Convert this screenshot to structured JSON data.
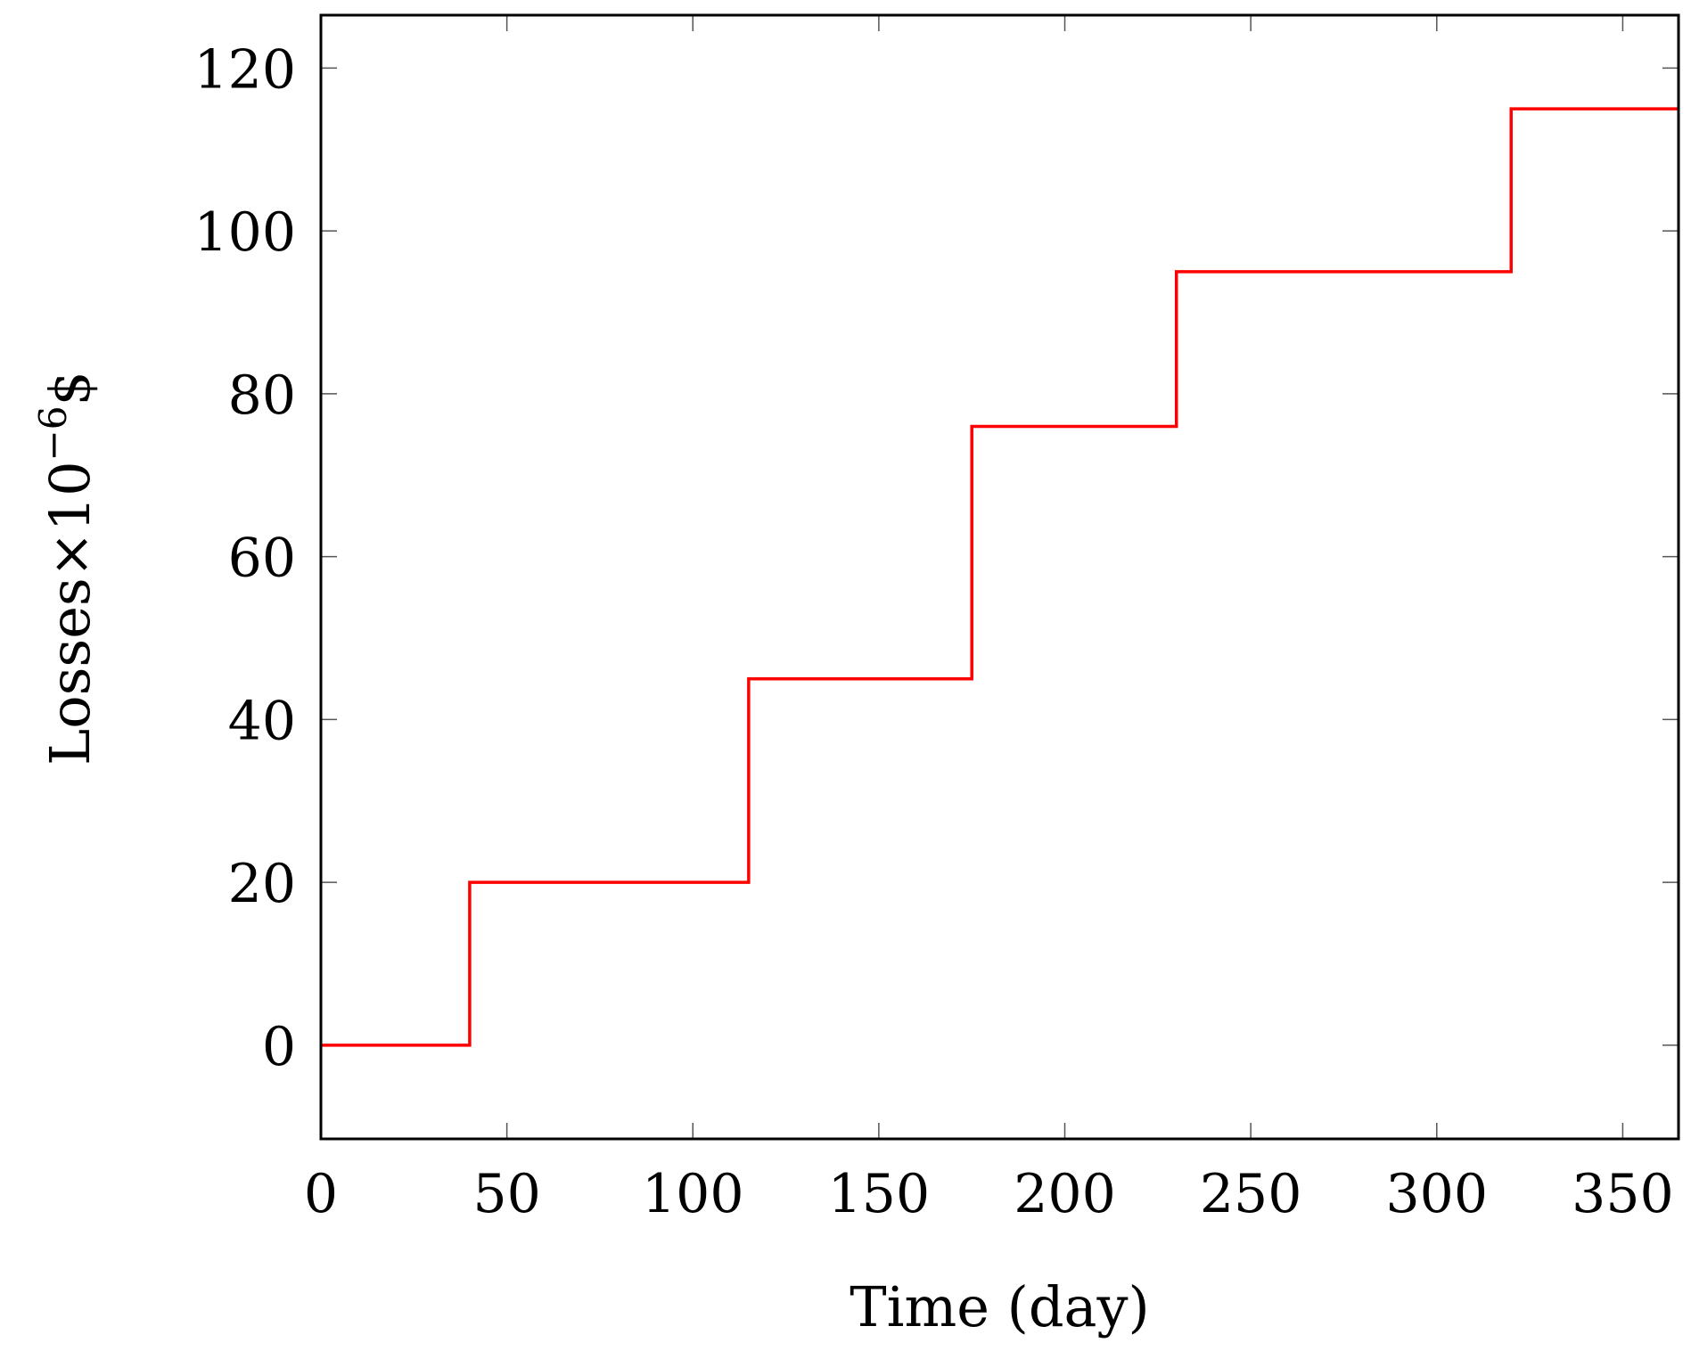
{
  "chart_data": {
    "type": "line",
    "step": true,
    "xlabel": "Time (day)",
    "ylabel": {
      "base": "Losses×10",
      "exponent": "−6",
      "unit": "$"
    },
    "xlim": [
      0,
      365
    ],
    "ylim": [
      -11.5,
      126.5
    ],
    "xticks": [
      0,
      50,
      100,
      150,
      200,
      250,
      300,
      350
    ],
    "yticks": [
      0,
      20,
      40,
      60,
      80,
      100,
      120
    ],
    "grid": false,
    "series": [
      {
        "color": "#ff0000",
        "x": [
          0,
          40,
          40,
          115,
          115,
          175,
          175,
          230,
          230,
          320,
          320,
          365
        ],
        "y": [
          0,
          0,
          20,
          20,
          45,
          45,
          76,
          76,
          95,
          95,
          115,
          115
        ]
      }
    ]
  }
}
